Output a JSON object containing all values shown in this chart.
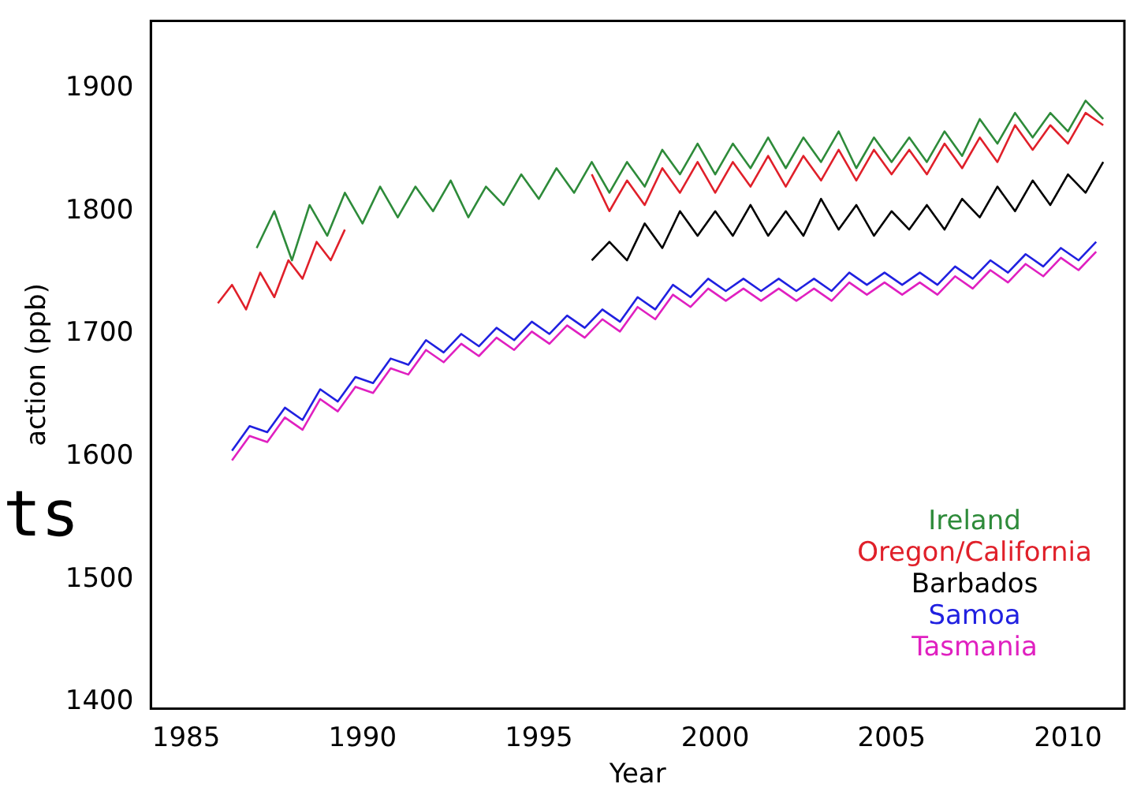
{
  "chart_data": {
    "type": "line",
    "xlabel": "Year",
    "ylabel": "action (ppb)",
    "xlim": [
      1984,
      2011.6
    ],
    "xticks": [
      1985,
      1990,
      1995,
      2000,
      2005,
      2010
    ],
    "ylim": [
      1395,
      1955
    ],
    "yticks": [
      1400,
      1500,
      1600,
      1700,
      1800,
      1900
    ],
    "grid": false,
    "legend": "bottom right",
    "marker": "none",
    "line_style": "solid",
    "annotations": [
      "ts"
    ],
    "series": [
      {
        "name": "Ireland",
        "color": "#2e8b3a",
        "x": [
          1987.0,
          1987.5,
          1988.0,
          1988.5,
          1989.0,
          1989.5,
          1990,
          1990.5,
          1991,
          1991.5,
          1992,
          1992.5,
          1993,
          1993.5,
          1994,
          1994.5,
          1995,
          1995.5,
          1996,
          1996.5,
          1997,
          1997.5,
          1998,
          1998.5,
          1999,
          1999.5,
          2000,
          2000.5,
          2001,
          2001.5,
          2002,
          2002.5,
          2003,
          2003.5,
          2004,
          2004.5,
          2005,
          2005.5,
          2006,
          2006.5,
          2007,
          2007.5,
          2008,
          2008.5,
          2009,
          2009.5,
          2010,
          2010.5,
          2011
        ],
        "values": [
          1770,
          1800,
          1760,
          1805,
          1780,
          1815,
          1790,
          1820,
          1795,
          1820,
          1800,
          1825,
          1795,
          1820,
          1805,
          1830,
          1810,
          1835,
          1815,
          1840,
          1815,
          1840,
          1820,
          1850,
          1830,
          1855,
          1830,
          1855,
          1835,
          1860,
          1835,
          1860,
          1840,
          1865,
          1835,
          1860,
          1840,
          1860,
          1840,
          1865,
          1845,
          1875,
          1855,
          1880,
          1860,
          1880,
          1865,
          1890,
          1875
        ]
      },
      {
        "name": "Oregon/California",
        "color": "#e0202a",
        "x": [
          1985.9,
          1986.3,
          1986.7,
          1987.1,
          1987.5,
          1987.9,
          1988.3,
          1988.7,
          1989.1,
          1989.5,
          1993,
          1996.5,
          1997,
          1997.5,
          1998,
          1998.5,
          1999,
          1999.5,
          2000,
          2000.5,
          2001,
          2001.5,
          2002,
          2002.5,
          2003,
          2003.5,
          2004,
          2004.5,
          2005,
          2005.5,
          2006,
          2006.5,
          2007,
          2007.5,
          2008,
          2008.5,
          2009,
          2009.5,
          2010,
          2010.5,
          2011
        ],
        "values": [
          1725,
          1740,
          1720,
          1750,
          1730,
          1760,
          1745,
          1775,
          1760,
          1785,
          null,
          1830,
          1800,
          1825,
          1805,
          1835,
          1815,
          1840,
          1815,
          1840,
          1820,
          1845,
          1820,
          1845,
          1825,
          1850,
          1825,
          1850,
          1830,
          1850,
          1830,
          1855,
          1835,
          1860,
          1840,
          1870,
          1850,
          1870,
          1855,
          1880,
          1870
        ]
      },
      {
        "name": "Barbados",
        "color": "#000000",
        "x": [
          1996.5,
          1997,
          1997.5,
          1998,
          1998.5,
          1999,
          1999.5,
          2000,
          2000.5,
          2001,
          2001.5,
          2002,
          2002.5,
          2003,
          2003.5,
          2004,
          2004.5,
          2005,
          2005.5,
          2006,
          2006.5,
          2007,
          2007.5,
          2008,
          2008.5,
          2009,
          2009.5,
          2010,
          2010.5,
          2011
        ],
        "values": [
          1760,
          1775,
          1760,
          1790,
          1770,
          1800,
          1780,
          1800,
          1780,
          1805,
          1780,
          1800,
          1780,
          1810,
          1785,
          1805,
          1780,
          1800,
          1785,
          1805,
          1785,
          1810,
          1795,
          1820,
          1800,
          1825,
          1805,
          1830,
          1815,
          1840
        ]
      },
      {
        "name": "Samoa",
        "color": "#2020e0",
        "x": [
          1986.3,
          1986.8,
          1987.3,
          1987.8,
          1988.3,
          1988.8,
          1989.3,
          1989.8,
          1990.3,
          1990.8,
          1991.3,
          1991.8,
          1992.3,
          1992.8,
          1993.3,
          1993.8,
          1994.3,
          1994.8,
          1995.3,
          1995.8,
          1996.3,
          1996.8,
          1997.3,
          1997.8,
          1998.3,
          1998.8,
          1999.3,
          1999.8,
          2000.3,
          2000.8,
          2001.3,
          2001.8,
          2002.3,
          2002.8,
          2003.3,
          2003.8,
          2004.3,
          2004.8,
          2005.3,
          2005.8,
          2006.3,
          2006.8,
          2007.3,
          2007.8,
          2008.3,
          2008.8,
          2009.3,
          2009.8,
          2010.3,
          2010.8
        ],
        "values": [
          1605,
          1625,
          1620,
          1640,
          1630,
          1655,
          1645,
          1665,
          1660,
          1680,
          1675,
          1695,
          1685,
          1700,
          1690,
          1705,
          1695,
          1710,
          1700,
          1715,
          1705,
          1720,
          1710,
          1730,
          1720,
          1740,
          1730,
          1745,
          1735,
          1745,
          1735,
          1745,
          1735,
          1745,
          1735,
          1750,
          1740,
          1750,
          1740,
          1750,
          1740,
          1755,
          1745,
          1760,
          1750,
          1765,
          1755,
          1770,
          1760,
          1775
        ]
      },
      {
        "name": "Tasmania",
        "color": "#e020c0",
        "x": [
          1986.3,
          1986.8,
          1987.3,
          1987.8,
          1988.3,
          1988.8,
          1989.3,
          1989.8,
          1990.3,
          1990.8,
          1991.3,
          1991.8,
          1992.3,
          1992.8,
          1993.3,
          1993.8,
          1994.3,
          1994.8,
          1995.3,
          1995.8,
          1996.3,
          1996.8,
          1997.3,
          1997.8,
          1998.3,
          1998.8,
          1999.3,
          1999.8,
          2000.3,
          2000.8,
          2001.3,
          2001.8,
          2002.3,
          2002.8,
          2003.3,
          2003.8,
          2004.3,
          2004.8,
          2005.3,
          2005.8,
          2006.3,
          2006.8,
          2007.3,
          2007.8,
          2008.3,
          2008.8,
          2009.3,
          2009.8,
          2010.3,
          2010.8
        ],
        "values": [
          1597,
          1617,
          1612,
          1632,
          1622,
          1647,
          1637,
          1657,
          1652,
          1672,
          1667,
          1687,
          1677,
          1692,
          1682,
          1697,
          1687,
          1702,
          1692,
          1707,
          1697,
          1712,
          1702,
          1722,
          1712,
          1732,
          1722,
          1737,
          1727,
          1737,
          1727,
          1737,
          1727,
          1737,
          1727,
          1742,
          1732,
          1742,
          1732,
          1742,
          1732,
          1747,
          1737,
          1752,
          1742,
          1757,
          1747,
          1762,
          1752,
          1767
        ]
      }
    ]
  }
}
